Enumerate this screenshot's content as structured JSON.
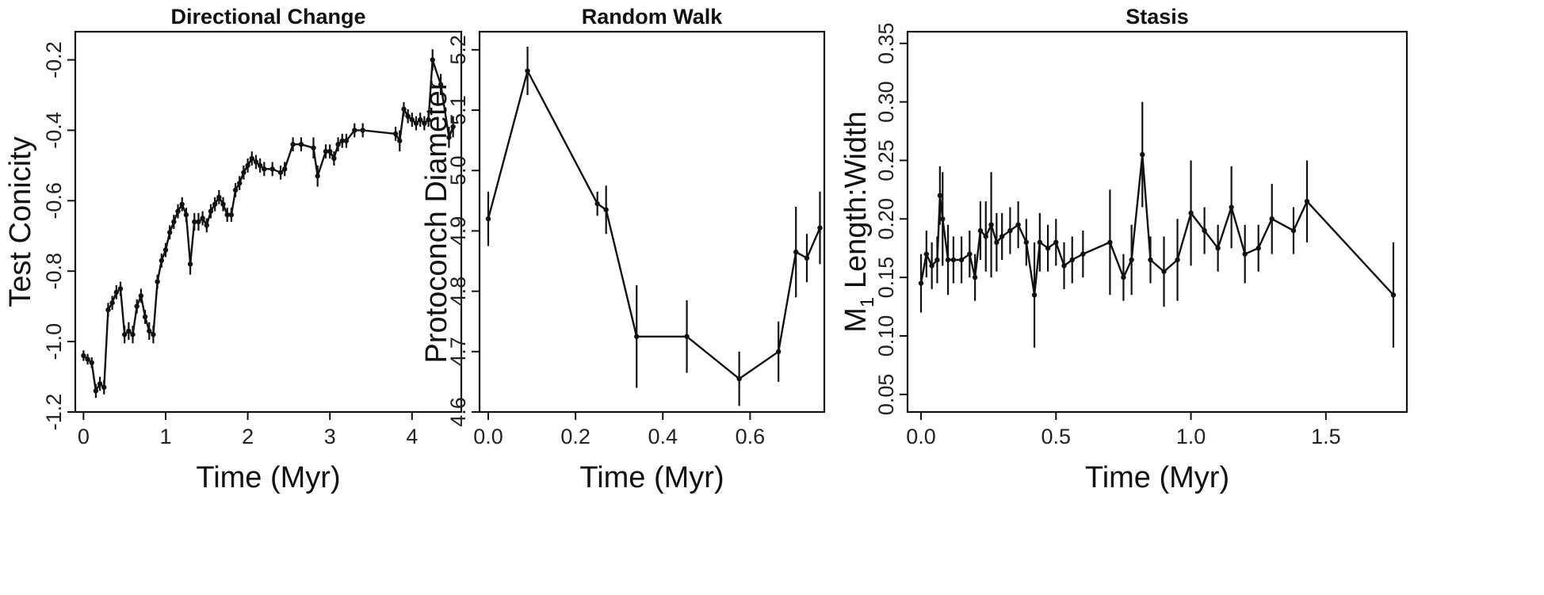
{
  "figure": {
    "background": "#ffffff",
    "ink": "#111111"
  },
  "chart_data": [
    {
      "type": "line",
      "title": "Directional Change",
      "xlabel": "Time (Myr)",
      "ylabel": "Test Conicity",
      "xlim": [
        -0.1,
        4.6
      ],
      "ylim": [
        -1.2,
        -0.12
      ],
      "xticks": [
        0,
        1,
        2,
        3,
        4
      ],
      "yticks": [
        -1.2,
        -1.0,
        -0.8,
        -0.6,
        -0.4,
        -0.2
      ],
      "xtick_labels": [
        "0",
        "1",
        "2",
        "3",
        "4"
      ],
      "ytick_labels": [
        "-1.2",
        "-1.0",
        "-0.8",
        "-0.6",
        "-0.4",
        "-0.2"
      ],
      "x": [
        0.0,
        0.05,
        0.1,
        0.15,
        0.2,
        0.25,
        0.3,
        0.35,
        0.4,
        0.45,
        0.5,
        0.55,
        0.6,
        0.65,
        0.7,
        0.75,
        0.8,
        0.85,
        0.9,
        0.95,
        1.0,
        1.05,
        1.1,
        1.15,
        1.2,
        1.25,
        1.3,
        1.35,
        1.4,
        1.45,
        1.5,
        1.55,
        1.6,
        1.65,
        1.7,
        1.75,
        1.8,
        1.85,
        1.9,
        1.95,
        2.0,
        2.05,
        2.1,
        2.15,
        2.2,
        2.3,
        2.4,
        2.45,
        2.55,
        2.65,
        2.8,
        2.85,
        2.95,
        3.0,
        3.05,
        3.1,
        3.15,
        3.2,
        3.3,
        3.4,
        3.8,
        3.85,
        3.9,
        3.95,
        4.0,
        4.05,
        4.1,
        4.15,
        4.2,
        4.25,
        4.35,
        4.45,
        4.5
      ],
      "y": [
        -1.04,
        -1.05,
        -1.06,
        -1.14,
        -1.12,
        -1.13,
        -0.91,
        -0.89,
        -0.86,
        -0.85,
        -0.98,
        -0.97,
        -0.98,
        -0.9,
        -0.87,
        -0.93,
        -0.97,
        -0.98,
        -0.83,
        -0.77,
        -0.74,
        -0.69,
        -0.66,
        -0.63,
        -0.61,
        -0.64,
        -0.78,
        -0.66,
        -0.66,
        -0.65,
        -0.67,
        -0.63,
        -0.61,
        -0.59,
        -0.61,
        -0.64,
        -0.64,
        -0.57,
        -0.55,
        -0.52,
        -0.5,
        -0.48,
        -0.49,
        -0.5,
        -0.51,
        -0.51,
        -0.52,
        -0.51,
        -0.44,
        -0.44,
        -0.45,
        -0.53,
        -0.46,
        -0.46,
        -0.48,
        -0.44,
        -0.43,
        -0.43,
        -0.4,
        -0.4,
        -0.41,
        -0.43,
        -0.34,
        -0.36,
        -0.37,
        -0.38,
        -0.37,
        -0.38,
        -0.37,
        -0.2,
        -0.27,
        -0.42,
        -0.39
      ],
      "err": [
        0.015,
        0.015,
        0.015,
        0.02,
        0.02,
        0.02,
        0.02,
        0.02,
        0.02,
        0.02,
        0.025,
        0.025,
        0.025,
        0.02,
        0.02,
        0.02,
        0.025,
        0.025,
        0.02,
        0.02,
        0.02,
        0.02,
        0.02,
        0.02,
        0.02,
        0.02,
        0.03,
        0.025,
        0.025,
        0.02,
        0.02,
        0.02,
        0.02,
        0.02,
        0.02,
        0.02,
        0.02,
        0.02,
        0.02,
        0.02,
        0.02,
        0.02,
        0.02,
        0.02,
        0.02,
        0.02,
        0.02,
        0.02,
        0.02,
        0.02,
        0.03,
        0.03,
        0.02,
        0.02,
        0.02,
        0.02,
        0.02,
        0.02,
        0.02,
        0.02,
        0.02,
        0.03,
        0.02,
        0.02,
        0.02,
        0.02,
        0.02,
        0.02,
        0.02,
        0.03,
        0.03,
        0.03,
        0.03
      ]
    },
    {
      "type": "line",
      "title": "Random Walk",
      "xlabel": "Time (Myr)",
      "ylabel": "Protoconch Diameter",
      "xlim": [
        -0.02,
        0.77
      ],
      "ylim": [
        4.6,
        5.23
      ],
      "xticks": [
        0.0,
        0.2,
        0.4,
        0.6
      ],
      "yticks": [
        4.6,
        4.7,
        4.8,
        4.9,
        5.0,
        5.1,
        5.2
      ],
      "xtick_labels": [
        "0.0",
        "0.2",
        "0.4",
        "0.6"
      ],
      "ytick_labels": [
        "4.6",
        "4.7",
        "4.8",
        "4.9",
        "5.0",
        "5.1",
        "5.2"
      ],
      "x": [
        0.0,
        0.09,
        0.25,
        0.27,
        0.34,
        0.455,
        0.575,
        0.665,
        0.705,
        0.73,
        0.76
      ],
      "y": [
        4.92,
        5.165,
        4.945,
        4.935,
        4.725,
        4.725,
        4.655,
        4.7,
        4.865,
        4.855,
        4.905
      ],
      "err": [
        0.045,
        0.04,
        0.02,
        0.04,
        0.085,
        0.06,
        0.045,
        0.05,
        0.075,
        0.04,
        0.06
      ]
    },
    {
      "type": "line",
      "title": "Stasis",
      "xlabel": "Time (Myr)",
      "ylabel": "M1 Length:Width",
      "ylabel_parts": [
        "M",
        "1",
        " Length:Width"
      ],
      "xlim": [
        -0.05,
        1.8
      ],
      "ylim": [
        0.035,
        0.36
      ],
      "xticks": [
        0.0,
        0.5,
        1.0,
        1.5
      ],
      "yticks": [
        0.05,
        0.1,
        0.15,
        0.2,
        0.25,
        0.3,
        0.35
      ],
      "xtick_labels": [
        "0.0",
        "0.5",
        "1.0",
        "1.5"
      ],
      "ytick_labels": [
        "0.05",
        "0.10",
        "0.15",
        "0.20",
        "0.25",
        "0.30",
        "0.35"
      ],
      "x": [
        0.0,
        0.02,
        0.04,
        0.06,
        0.07,
        0.08,
        0.1,
        0.12,
        0.15,
        0.18,
        0.2,
        0.22,
        0.24,
        0.26,
        0.28,
        0.3,
        0.33,
        0.36,
        0.39,
        0.42,
        0.44,
        0.47,
        0.5,
        0.53,
        0.56,
        0.6,
        0.7,
        0.75,
        0.78,
        0.82,
        0.85,
        0.9,
        0.95,
        1.0,
        1.05,
        1.1,
        1.15,
        1.2,
        1.25,
        1.3,
        1.38,
        1.43,
        1.75
      ],
      "y": [
        0.145,
        0.17,
        0.16,
        0.165,
        0.22,
        0.2,
        0.165,
        0.165,
        0.165,
        0.17,
        0.15,
        0.19,
        0.185,
        0.195,
        0.18,
        0.185,
        0.19,
        0.195,
        0.18,
        0.135,
        0.18,
        0.175,
        0.18,
        0.16,
        0.165,
        0.17,
        0.18,
        0.15,
        0.165,
        0.255,
        0.165,
        0.155,
        0.165,
        0.205,
        0.19,
        0.175,
        0.21,
        0.17,
        0.175,
        0.2,
        0.19,
        0.215,
        0.135
      ],
      "err": [
        0.025,
        0.02,
        0.02,
        0.02,
        0.025,
        0.04,
        0.03,
        0.02,
        0.02,
        0.02,
        0.02,
        0.025,
        0.03,
        0.045,
        0.025,
        0.02,
        0.02,
        0.02,
        0.02,
        0.045,
        0.025,
        0.02,
        0.02,
        0.02,
        0.02,
        0.02,
        0.045,
        0.02,
        0.03,
        0.045,
        0.02,
        0.03,
        0.035,
        0.045,
        0.02,
        0.02,
        0.035,
        0.025,
        0.02,
        0.03,
        0.02,
        0.035,
        0.045
      ]
    }
  ]
}
